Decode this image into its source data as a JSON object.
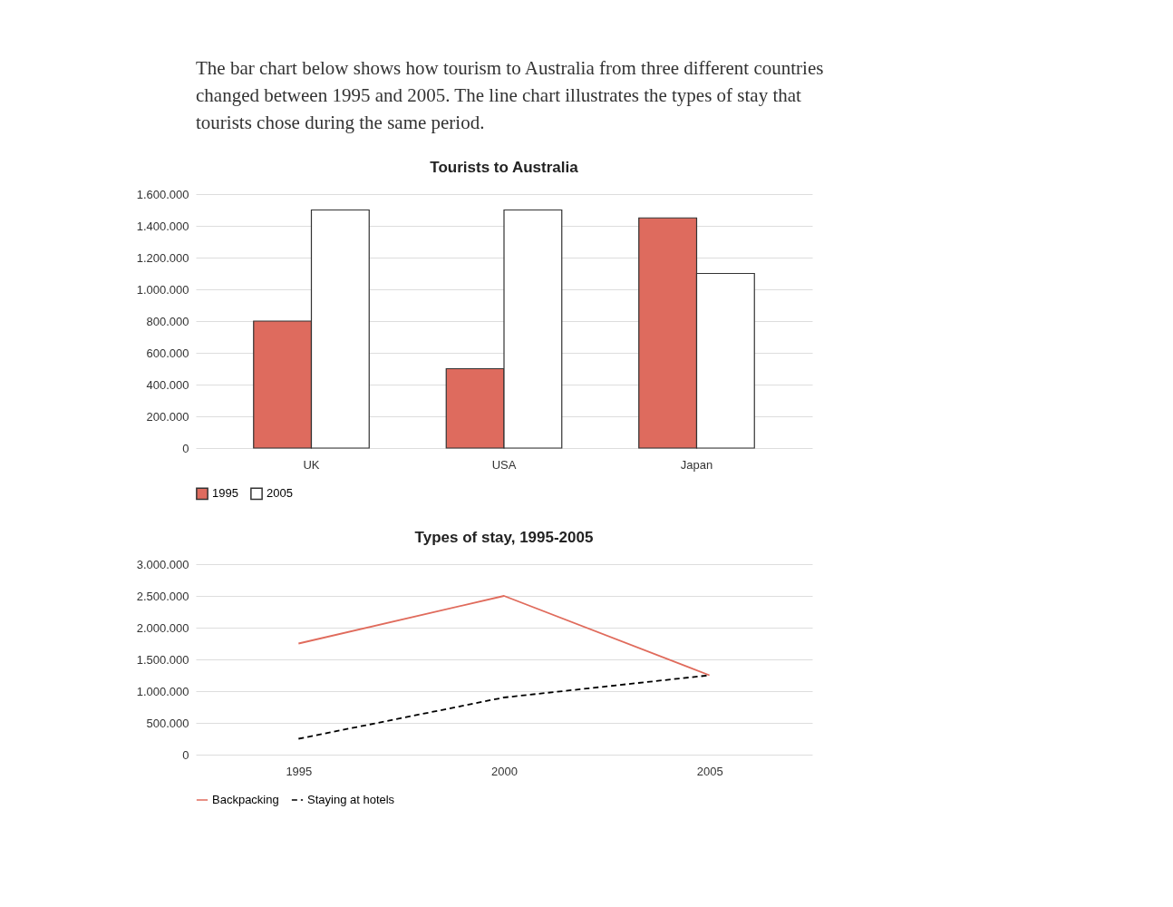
{
  "chart_data": [
    {
      "type": "bar",
      "title": "Tourists to Australia",
      "annotations": [
        "The bar chart below shows how tourism to Australia from three different countries changed between 1995 and 2005. The line chart illustrates the types of stay that tourists chose during the same period."
      ],
      "categories": [
        "UK",
        "USA",
        "Japan"
      ],
      "series": [
        {
          "name": "1995",
          "color": "#de6b5e",
          "values": [
            800000,
            500000,
            1450000
          ]
        },
        {
          "name": "2005",
          "color": "#ffffff",
          "values": [
            1500000,
            1500000,
            1100000
          ]
        }
      ],
      "ylim": [
        0,
        1600000
      ],
      "yticks": [
        {
          "value": 0,
          "label": "0"
        },
        {
          "value": 200000,
          "label": "200.000"
        },
        {
          "value": 400000,
          "label": "400.000"
        },
        {
          "value": 600000,
          "label": "600.000"
        },
        {
          "value": 800000,
          "label": "800.000"
        },
        {
          "value": 1000000,
          "label": "1.000.000"
        },
        {
          "value": 1200000,
          "label": "1.200.000"
        },
        {
          "value": 1400000,
          "label": "1.400.000"
        },
        {
          "value": 1600000,
          "label": "1.600.000"
        }
      ],
      "grid": "y",
      "legend": "bottom"
    },
    {
      "type": "line",
      "title": "Types of stay, 1995-2005",
      "categories": [
        "1995",
        "2000",
        "2005"
      ],
      "series": [
        {
          "name": "Backpacking",
          "color": "#e06b5c",
          "line_style": "solid",
          "values": [
            1750000,
            2500000,
            1250000
          ]
        },
        {
          "name": "Staying at hotels",
          "color": "#000000",
          "line_style": "dashed",
          "values": [
            250000,
            900000,
            1250000
          ]
        }
      ],
      "ylim": [
        0,
        3000000
      ],
      "yticks": [
        {
          "value": 0,
          "label": "0"
        },
        {
          "value": 500000,
          "label": "500.000"
        },
        {
          "value": 1000000,
          "label": "1.000.000"
        },
        {
          "value": 1500000,
          "label": "1.500.000"
        },
        {
          "value": 2000000,
          "label": "2.000.000"
        },
        {
          "value": 2500000,
          "label": "2.500.000"
        },
        {
          "value": 3000000,
          "label": "3.000.000"
        }
      ],
      "grid": "y",
      "marker": "none",
      "legend": "bottom"
    }
  ]
}
